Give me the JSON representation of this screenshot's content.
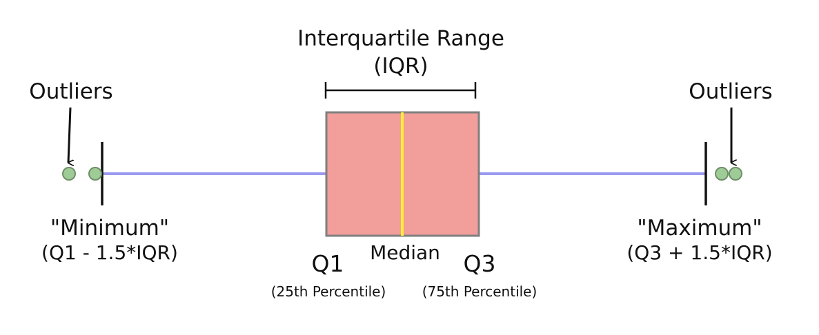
{
  "iqr": {
    "title_line1": "Interquartile Range",
    "title_line2": "(IQR)"
  },
  "outliers_left": {
    "label": "Outliers"
  },
  "outliers_right": {
    "label": "Outliers"
  },
  "minimum": {
    "label": "\"Minimum\"",
    "formula": "(Q1 - 1.5*IQR)"
  },
  "maximum": {
    "label": "\"Maximum\"",
    "formula": "(Q3 + 1.5*IQR)"
  },
  "q1": {
    "label": "Q1",
    "sublabel": "(25th Percentile)"
  },
  "median": {
    "label": "Median"
  },
  "q3": {
    "label": "Q3",
    "sublabel": "(75th Percentile)"
  },
  "colors": {
    "box_fill": "#f29e9b",
    "box_stroke": "#7f7f7f",
    "median_line": "#ffee33",
    "whisker_line": "#9a9af0",
    "outlier_fill": "#9fcc96",
    "outlier_stroke": "#6f8f69",
    "text": "#111111"
  }
}
